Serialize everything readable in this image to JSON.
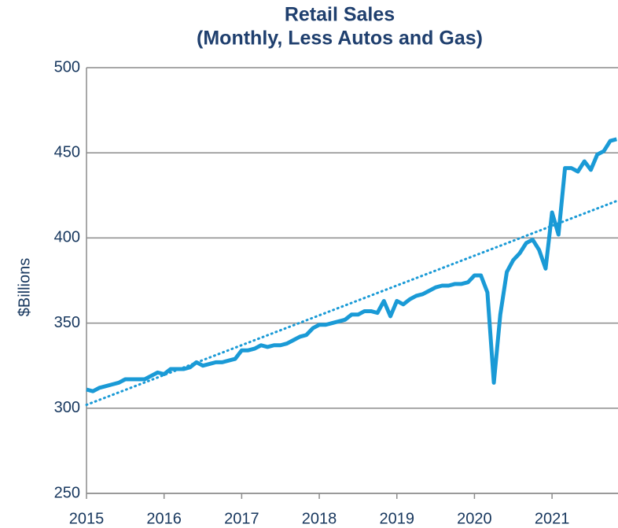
{
  "chart_data": {
    "type": "line",
    "title": "Retail Sales",
    "subtitle": "(Monthly, Less Autos and Gas)",
    "y_label": "$Billions",
    "x": [
      2015,
      2015.083,
      2015.167,
      2015.25,
      2015.333,
      2015.417,
      2015.5,
      2015.583,
      2015.667,
      2015.75,
      2015.833,
      2015.917,
      2016,
      2016.083,
      2016.167,
      2016.25,
      2016.333,
      2016.417,
      2016.5,
      2016.583,
      2016.667,
      2016.75,
      2016.833,
      2016.917,
      2017,
      2017.083,
      2017.167,
      2017.25,
      2017.333,
      2017.417,
      2017.5,
      2017.583,
      2017.667,
      2017.75,
      2017.833,
      2017.917,
      2018,
      2018.083,
      2018.167,
      2018.25,
      2018.333,
      2018.417,
      2018.5,
      2018.583,
      2018.667,
      2018.75,
      2018.833,
      2018.917,
      2019,
      2019.083,
      2019.167,
      2019.25,
      2019.333,
      2019.417,
      2019.5,
      2019.583,
      2019.667,
      2019.75,
      2019.833,
      2019.917,
      2020,
      2020.083,
      2020.167,
      2020.25,
      2020.333,
      2020.417,
      2020.5,
      2020.583,
      2020.667,
      2020.75,
      2020.833,
      2020.917,
      2021,
      2021.083,
      2021.167,
      2021.25,
      2021.333,
      2021.417,
      2021.5,
      2021.583,
      2021.667,
      2021.75,
      2021.833
    ],
    "series": [
      {
        "color": "#1a9ad6",
        "values": [
          311,
          310,
          312,
          313,
          314,
          315,
          317,
          317,
          317,
          317,
          319,
          321,
          320,
          323,
          323,
          323,
          324,
          327,
          325,
          326,
          327,
          327,
          328,
          329,
          334,
          334,
          335,
          337,
          336,
          337,
          337,
          338,
          340,
          342,
          343,
          347,
          349,
          349,
          350,
          351,
          352,
          355,
          355,
          357,
          357,
          356,
          363,
          354,
          363,
          361,
          364,
          366,
          367,
          369,
          371,
          372,
          372,
          373,
          373,
          374,
          378,
          378,
          368,
          315,
          355,
          380,
          387,
          391,
          397,
          399,
          393,
          382,
          415,
          402,
          441,
          441,
          439,
          445,
          440,
          449,
          451,
          457,
          458
        ]
      },
      {
        "color": "#1a9ad6",
        "style": "dotted",
        "x": [
          2015,
          2021.85
        ],
        "values": [
          302,
          422
        ]
      }
    ],
    "xlim": [
      2015,
      2021.85
    ],
    "xticks": [
      2015,
      2016,
      2017,
      2018,
      2019,
      2020,
      2021
    ],
    "ylim": [
      250,
      500
    ],
    "yticks": [
      250,
      300,
      350,
      400,
      450,
      500
    ],
    "grid": true
  }
}
